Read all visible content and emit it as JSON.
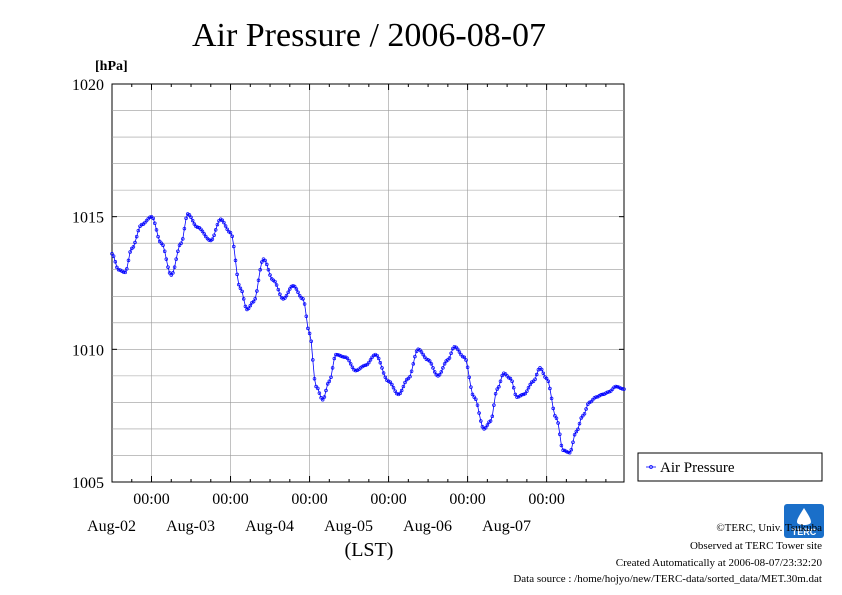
{
  "chart_data": {
    "type": "line",
    "title": "Air Pressure / 2006-08-07",
    "ylabel": "[hPa]",
    "xlabel": "(LST)",
    "ylim": [
      1005,
      1020
    ],
    "y_ticks": [
      1005,
      1010,
      1015,
      1020
    ],
    "x_range_days": [
      "2006-08-01T12:00",
      "2006-08-07T23:30"
    ],
    "x_tick_labels": [
      {
        "time": "00:00",
        "date": "Aug-02"
      },
      {
        "time": "00:00",
        "date": "Aug-03"
      },
      {
        "time": "00:00",
        "date": "Aug-04"
      },
      {
        "time": "00:00",
        "date": "Aug-05"
      },
      {
        "time": "00:00",
        "date": "Aug-06"
      },
      {
        "time": "00:00",
        "date": "Aug-07"
      }
    ],
    "grid": true,
    "legend_position": "right",
    "series": [
      {
        "name": "Air Pressure",
        "color": "#0000ff",
        "points": [
          [
            "2006-08-01T12:00",
            1013.6
          ],
          [
            "2006-08-01T14:00",
            1013.0
          ],
          [
            "2006-08-01T16:00",
            1012.9
          ],
          [
            "2006-08-01T18:00",
            1013.8
          ],
          [
            "2006-08-01T21:00",
            1014.7
          ],
          [
            "2006-08-02T00:00",
            1015.0
          ],
          [
            "2006-08-02T03:00",
            1014.0
          ],
          [
            "2006-08-02T06:00",
            1012.8
          ],
          [
            "2006-08-02T09:00",
            1014.0
          ],
          [
            "2006-08-02T11:00",
            1015.1
          ],
          [
            "2006-08-02T14:00",
            1014.6
          ],
          [
            "2006-08-02T18:00",
            1014.1
          ],
          [
            "2006-08-02T21:00",
            1014.9
          ],
          [
            "2006-08-03T00:00",
            1014.4
          ],
          [
            "2006-08-03T03:00",
            1012.3
          ],
          [
            "2006-08-03T05:00",
            1011.5
          ],
          [
            "2006-08-03T07:00",
            1011.8
          ],
          [
            "2006-08-03T10:00",
            1013.4
          ],
          [
            "2006-08-03T13:00",
            1012.6
          ],
          [
            "2006-08-03T16:00",
            1011.9
          ],
          [
            "2006-08-03T19:00",
            1012.4
          ],
          [
            "2006-08-03T22:00",
            1011.9
          ],
          [
            "2006-08-04T00:00",
            1010.6
          ],
          [
            "2006-08-04T02:00",
            1008.6
          ],
          [
            "2006-08-04T04:00",
            1008.1
          ],
          [
            "2006-08-04T06:00",
            1008.8
          ],
          [
            "2006-08-04T08:00",
            1009.8
          ],
          [
            "2006-08-04T11:00",
            1009.7
          ],
          [
            "2006-08-04T14:00",
            1009.2
          ],
          [
            "2006-08-04T17:00",
            1009.4
          ],
          [
            "2006-08-04T20:00",
            1009.8
          ],
          [
            "2006-08-05T00:00",
            1008.8
          ],
          [
            "2006-08-05T03:00",
            1008.3
          ],
          [
            "2006-08-05T06:00",
            1008.9
          ],
          [
            "2006-08-05T09:00",
            1010.0
          ],
          [
            "2006-08-05T12:00",
            1009.6
          ],
          [
            "2006-08-05T15:00",
            1009.0
          ],
          [
            "2006-08-05T18:00",
            1009.6
          ],
          [
            "2006-08-05T20:00",
            1010.1
          ],
          [
            "2006-08-05T23:00",
            1009.7
          ],
          [
            "2006-08-06T02:00",
            1008.2
          ],
          [
            "2006-08-06T05:00",
            1007.0
          ],
          [
            "2006-08-06T07:00",
            1007.3
          ],
          [
            "2006-08-06T09:00",
            1008.5
          ],
          [
            "2006-08-06T11:00",
            1009.1
          ],
          [
            "2006-08-06T13:00",
            1008.9
          ],
          [
            "2006-08-06T15:00",
            1008.2
          ],
          [
            "2006-08-06T17:00",
            1008.3
          ],
          [
            "2006-08-06T20:00",
            1008.8
          ],
          [
            "2006-08-06T22:00",
            1009.3
          ],
          [
            "2006-08-07T00:00",
            1008.9
          ],
          [
            "2006-08-07T03:00",
            1007.4
          ],
          [
            "2006-08-07T05:00",
            1006.2
          ],
          [
            "2006-08-07T07:00",
            1006.1
          ],
          [
            "2006-08-07T09:00",
            1006.9
          ],
          [
            "2006-08-07T11:00",
            1007.5
          ],
          [
            "2006-08-07T13:00",
            1008.0
          ],
          [
            "2006-08-07T15:00",
            1008.2
          ],
          [
            "2006-08-07T17:00",
            1008.3
          ],
          [
            "2006-08-07T19:00",
            1008.4
          ],
          [
            "2006-08-07T21:00",
            1008.6
          ],
          [
            "2006-08-07T23:30",
            1008.5
          ]
        ]
      }
    ]
  },
  "footer": {
    "copyright": "©TERC, Univ. Tsukuba",
    "observed": "Observed at TERC Tower site",
    "created": "Created Automatically at 2006-08-07/23:32:20",
    "source": "Data source : /home/hojyo/new/TERC-data/sorted_data/MET.30m.dat"
  },
  "logo": {
    "text": "TERC",
    "color": "#1a6fc9"
  }
}
